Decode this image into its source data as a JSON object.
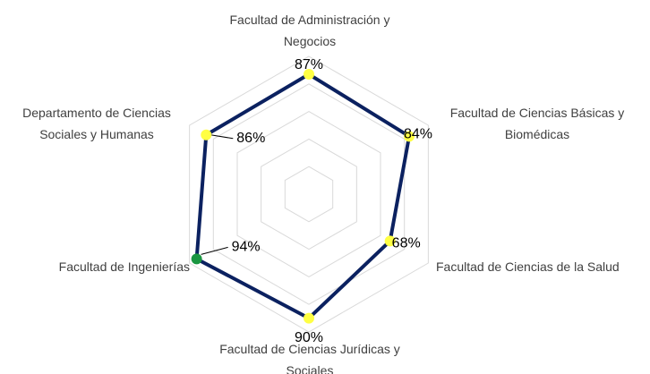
{
  "chart_data": {
    "type": "radar",
    "categories": [
      "Facultad de Administración y Negocios",
      "Facultad de Ciencias Básicas y Biomédicas",
      "Facultad de Ciencias de la Salud",
      "Facultad de Ciencias Jurídicas y Sociales",
      "Facultad de Ingenierías",
      "Departamento de Ciencias Sociales y Humanas"
    ],
    "values": [
      87,
      84,
      68,
      90,
      94,
      86
    ],
    "value_labels": [
      "87%",
      "84%",
      "68%",
      "90%",
      "94%",
      "86%"
    ],
    "color": "#0b2160",
    "point_colors": [
      "#ffff44",
      "#ffff44",
      "#ffff44",
      "#ffff44",
      "#1a9641",
      "#ffff44"
    ],
    "ylim": [
      0,
      100
    ],
    "yticks": [
      0,
      20,
      40,
      60,
      80,
      100
    ],
    "grid": true
  }
}
